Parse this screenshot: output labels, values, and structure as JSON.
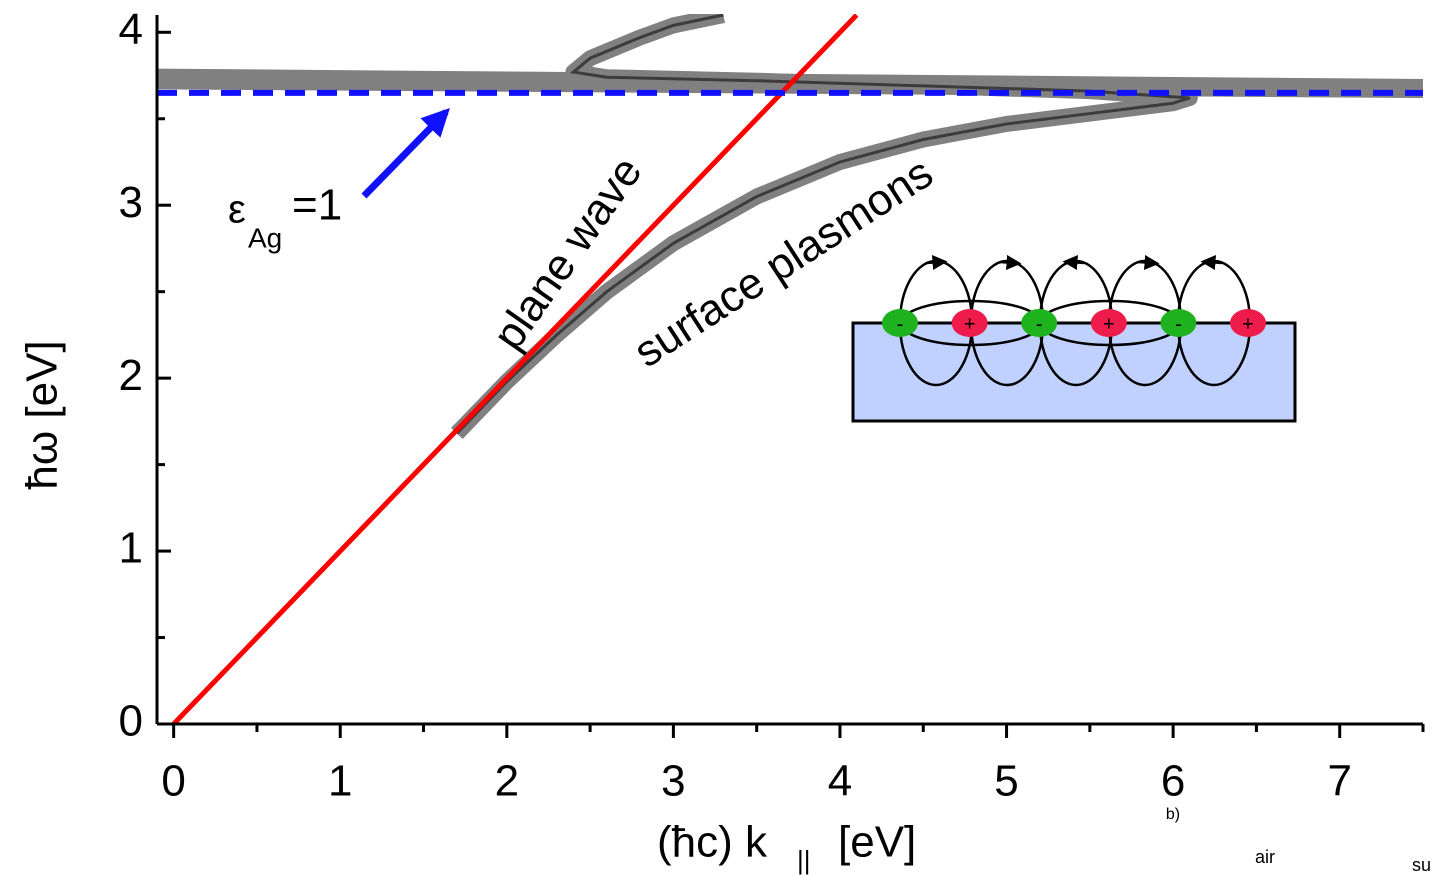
{
  "chart_data": {
    "type": "line",
    "xlabel": "(ħc) k",
    "xlabel_sub": "||",
    "xlabel_unit": "[eV]",
    "ylabel": "ħω [eV]",
    "xlim": [
      -0.1,
      7.5
    ],
    "ylim": [
      0,
      4.1
    ],
    "xticks": [
      0,
      1,
      2,
      3,
      4,
      5,
      6,
      7
    ],
    "yticks": [
      0,
      1,
      2,
      3,
      4
    ],
    "xminorticks": [
      0.5,
      1.5,
      2.5,
      3.5,
      4.5,
      5.5,
      6.5,
      7.5
    ],
    "yminorticks": [
      0.5,
      1.5,
      2.5,
      3.5
    ],
    "band": {
      "color": "#808080",
      "x": [
        -0.1,
        7.5
      ],
      "lower": [
        3.67,
        3.62
      ],
      "upper": [
        3.79,
        3.73
      ]
    },
    "series": [
      {
        "color": "#3c3c3c",
        "halo": "#808080",
        "x": [
          1.7,
          2.0,
          2.3,
          2.6,
          3.0,
          3.5,
          4.0,
          4.5,
          5.0,
          5.5,
          6.0,
          6.1,
          5.5,
          4.5,
          3.5,
          2.6,
          2.4,
          2.5,
          2.8,
          3.0,
          3.3
        ],
        "values": [
          1.68,
          1.98,
          2.25,
          2.5,
          2.78,
          3.05,
          3.25,
          3.38,
          3.47,
          3.53,
          3.59,
          3.62,
          3.66,
          3.69,
          3.72,
          3.74,
          3.77,
          3.85,
          3.97,
          4.04,
          4.1
        ]
      },
      {
        "color": "#ff0000",
        "x": [
          0,
          4.1
        ],
        "values": [
          0,
          4.1
        ]
      },
      {
        "color": "#1010ff",
        "dashed": true,
        "x": [
          -0.1,
          7.5
        ],
        "values": [
          3.65,
          3.65
        ]
      }
    ],
    "annotations": [
      "plane wave",
      "surface plasmons"
    ],
    "epsilon": {
      "symbol": "ε",
      "sub": "Ag",
      "rest": "=1"
    },
    "inset_labels": [
      "-",
      "+",
      "-",
      "+",
      "-",
      "+"
    ],
    "other_texts": [
      "b)",
      "air",
      "su"
    ]
  }
}
